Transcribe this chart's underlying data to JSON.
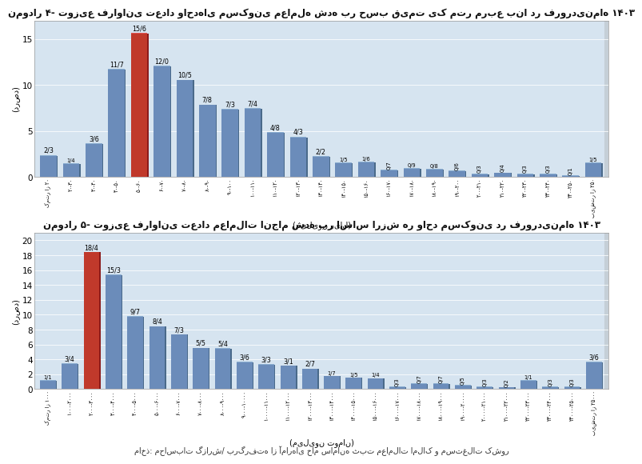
{
  "chart1": {
    "title": "نمودار ۴- توزیع فراوانی تعداد واحدهای مسکونی معامله شده بر حسب قیمت یک متر مربع بنا در فروردین‌ماه ۱۴۰۳",
    "ylabel": "(درصد)",
    "xlabel": "(میلیون ریال)",
    "values": [
      2.3,
      1.4,
      3.6,
      11.7,
      15.6,
      12.0,
      10.5,
      7.8,
      7.3,
      7.4,
      4.8,
      4.3,
      2.2,
      1.5,
      1.6,
      0.7,
      0.9,
      0.8,
      0.6,
      0.3,
      0.4,
      0.3,
      0.3,
      0.1,
      1.5
    ],
    "labels": [
      "2/3",
      "1/4",
      "3/6",
      "11/7",
      "15/6",
      "12/0",
      "10/5",
      "7/8",
      "7/3",
      "7/4",
      "4/8",
      "4/3",
      "2/2",
      "1/5",
      "1/6",
      "0/7",
      "0/9",
      "0/8",
      "0/6",
      "0/3",
      "0/4",
      "0/3",
      "0/3",
      "0/1",
      "1/5"
    ],
    "red_index": 4,
    "xlabels": [
      "کمتر از ۲۰",
      "۲۰-۳۰",
      "۳۰-۴۰",
      "۴۰-۵۰",
      "۵۰-۶۰",
      "۶۰-۷۰",
      "۷۰-۸۰",
      "۸۰-۹۰",
      "۹۰-۱۰۰",
      "۱۰۰-۱۱۰",
      "۱۱۰-۱۲۰",
      "۱۲۰-۱۳۰",
      "۱۳۰-۱۴۰",
      "۱۴۰-۱۵۰",
      "۱۵۰-۱۶۰",
      "۱۶۰-۱۷۰",
      "۱۷۰-۱۸۰",
      "۱۸۰-۱۹۰",
      "۱۹۰-۲۰۰",
      "۲۰۰-۲۱۰",
      "۲۱۰-۲۲۰",
      "۲۲۰-۲۳۰",
      "۲۳۰-۲۴۰",
      "۲۴۰-۲۵۰",
      "بیشتر از ۲۵۰"
    ],
    "ylim": [
      0,
      17
    ],
    "yticks": [
      0,
      5,
      10,
      15
    ],
    "bar_color": "#6b8cba",
    "red_color": "#c0392b",
    "bg_color": "#d6e4f0",
    "border_color": "#b0bec5"
  },
  "chart2": {
    "title": "نمودار ۵- توزیع فراوانی تعداد معاملات انجام شده بر اساس ارزش هر واحد مسکونی در فروردین‌ماه ۱۴۰۳",
    "ylabel": "(درصد)",
    "xlabel": "(میلیون تومان)",
    "values": [
      1.1,
      3.4,
      18.4,
      15.3,
      9.7,
      8.4,
      7.3,
      5.5,
      5.4,
      3.6,
      3.3,
      3.1,
      2.7,
      1.7,
      1.5,
      1.4,
      0.3,
      0.7,
      0.7,
      0.5,
      0.3,
      0.2,
      1.1,
      0.3,
      0.3,
      3.6
    ],
    "labels": [
      "1/1",
      "3/4",
      "18/4",
      "15/3",
      "9/7",
      "8/4",
      "7/3",
      "5/5",
      "5/4",
      "3/6",
      "3/3",
      "3/1",
      "2/7",
      "1/7",
      "1/5",
      "1/4",
      "0/3",
      "0/7",
      "0/7",
      "0/5",
      "0/3",
      "0/2",
      "1/1",
      "0/3",
      "0/3",
      "3/6"
    ],
    "red_index": 2,
    "xlabels": [
      "کمتر از ۱۰۰۰",
      "۱۰۰۰-۲۰۰۰",
      "۲۰۰۰-۳۰۰۰",
      "۳۰۰۰-۴۰۰۰",
      "۴۰۰۰-۵۰۰۰",
      "۵۰۰۰-۶۰۰۰",
      "۶۰۰۰-۷۰۰۰",
      "۷۰۰۰-۸۰۰۰",
      "۸۰۰۰-۹۰۰۰",
      "۹۰۰۰-۱۰۰۰۰",
      "۱۰۰۰۰-۱۱۰۰۰",
      "۱۱۰۰۰-۱۲۰۰۰",
      "۱۲۰۰۰-۱۳۰۰۰",
      "۱۳۰۰۰-۱۴۰۰۰",
      "۱۴۰۰۰-۱۵۰۰۰",
      "۱۵۰۰۰-۱۶۰۰۰",
      "۱۶۰۰۰-۱۷۰۰۰",
      "۱۷۰۰۰-۱۸۰۰۰",
      "۱۸۰۰۰-۱۹۰۰۰",
      "۱۹۰۰۰-۲۰۰۰۰",
      "۲۰۰۰۰-۲۱۰۰۰",
      "۲۱۰۰۰-۲۲۰۰۰",
      "۲۲۰۰۰-۲۳۰۰۰",
      "۲۳۰۰۰-۲۴۰۰۰",
      "۲۴۰۰۰-۲۵۰۰۰",
      "بیشتر از ۲۵۰۰۰"
    ],
    "ylim": [
      0,
      21
    ],
    "yticks": [
      0,
      2,
      4,
      6,
      8,
      10,
      12,
      14,
      16,
      18,
      20
    ],
    "bar_color": "#6b8cba",
    "red_color": "#c0392b",
    "bg_color": "#d6e4f0",
    "border_color": "#b0bec5"
  },
  "source_text": "ماخذ: محاسبات گزارش/ برگرفته از آمارهای خام سامانه ثبت معاملات املاک و مستغلات کشور",
  "figure_bg": "#ffffff",
  "outer_bg": "#e8e8e8"
}
